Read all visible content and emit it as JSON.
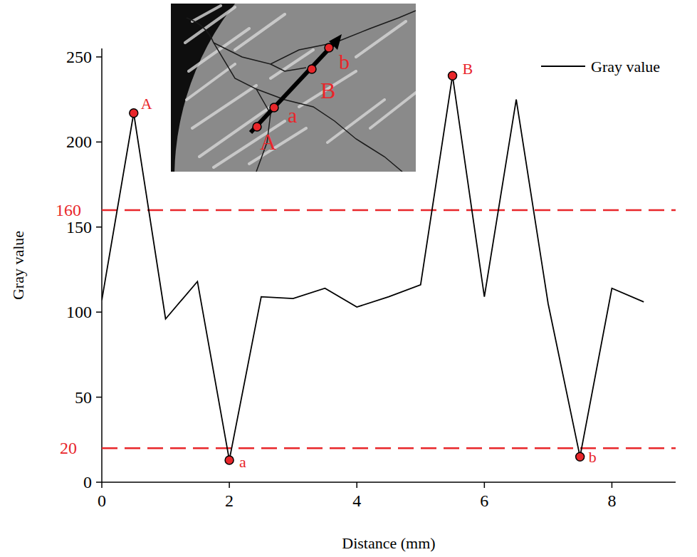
{
  "chart_data": {
    "type": "line",
    "x_label": "Distance (mm)",
    "y_label": "Gray value",
    "x": [
      0,
      0.5,
      1,
      1.5,
      2,
      2.5,
      3,
      3.5,
      4,
      4.5,
      5,
      5.5,
      6,
      6.5,
      7,
      7.5,
      8,
      8.5
    ],
    "series": [
      {
        "name": "Gray value",
        "color": "#000000",
        "values": [
          107,
          217,
          96,
          118,
          13,
          109,
          108,
          114,
          103,
          109,
          116,
          239,
          109,
          225,
          105,
          15,
          114,
          106
        ]
      }
    ],
    "xlim": [
      0,
      9
    ],
    "xticks": [
      0,
      2,
      4,
      6,
      8
    ],
    "ylim": [
      0,
      255
    ],
    "yticks": [
      0,
      50,
      100,
      150,
      200,
      250
    ],
    "grid": false,
    "legend": "upper right",
    "reference_lines": {
      "values": [
        160,
        20
      ],
      "color": "#e8262a",
      "line_style": "dashed"
    },
    "annotations": [
      {
        "text": "A",
        "x": 0.5,
        "y": 217
      },
      {
        "text": "a",
        "x": 2,
        "y": 13
      },
      {
        "text": "B",
        "x": 5.5,
        "y": 239
      },
      {
        "text": "b",
        "x": 7.5,
        "y": 15
      }
    ],
    "inset": {
      "labels": [
        "A",
        "a",
        "B",
        "b"
      ]
    }
  }
}
